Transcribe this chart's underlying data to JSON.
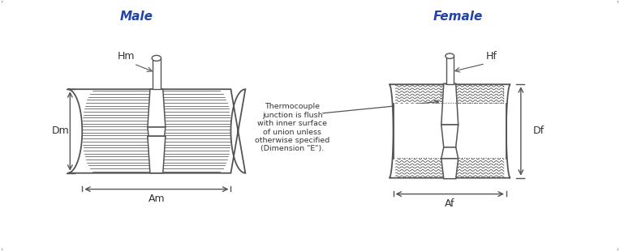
{
  "title_male": "Male",
  "title_female": "Female",
  "title_color": "#2244aa",
  "label_color": "#333333",
  "line_color": "#555555",
  "bg_color": "#f0f0f0",
  "border_color": "#999999",
  "annotation_text": "Thermocouple\njunction is flush\nwith inner surface\nof union unless\notherwise specified\n(Dimension \"E\").",
  "label_Hm": "Hm",
  "label_Hf": "Hf",
  "label_Dm": "Dm",
  "label_Df": "Df",
  "label_Am": "Am",
  "label_Af": "Af"
}
